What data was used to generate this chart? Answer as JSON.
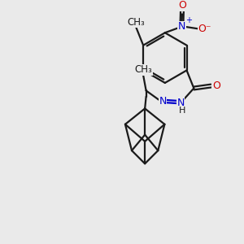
{
  "background_color": "#eaeaea",
  "bond_color": "#1a1a1a",
  "N_color": "#0000cc",
  "O_color": "#cc0000",
  "figsize": [
    3.0,
    3.0
  ],
  "dpi": 100,
  "xlim": [
    0,
    10
  ],
  "ylim": [
    0,
    10
  ]
}
